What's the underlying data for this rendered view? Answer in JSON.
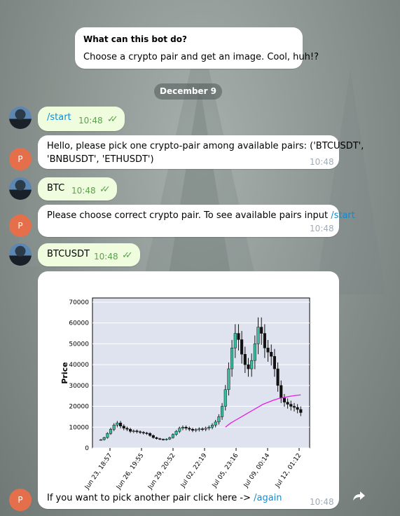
{
  "intro": {
    "title": "What can this bot do?",
    "text": "Choose a crypto pair and get an image. Cool, huh!?"
  },
  "date_separator": "December 9",
  "messages": [
    {
      "from": "user",
      "text": "/start",
      "time": "10:48"
    },
    {
      "from": "bot",
      "avatar_letter": "P",
      "line1": "Hello, please pick one crypto-pair among available pairs: ('BTCUSDT',",
      "line2": "'BNBUSDT', 'ETHUSDT')",
      "time": "10:48"
    },
    {
      "from": "user",
      "text": "BTC",
      "time": "10:48"
    },
    {
      "from": "bot",
      "avatar_letter": "P",
      "text_prefix": "Please choose correct crypto pair. To see available pairs input ",
      "link": "/start",
      "time": "10:48"
    },
    {
      "from": "user",
      "text": "BTCUSDT",
      "time": "10:48"
    },
    {
      "from": "bot",
      "avatar_letter": "P",
      "text_prefix": "If you want to pick another pair click here -> ",
      "link": "/again",
      "time": "10:48"
    }
  ],
  "icons": {
    "read_receipt": "double-check-icon",
    "share": "share-arrow-icon"
  },
  "colors": {
    "outgoing_bubble": "#effdde",
    "incoming_bubble": "#ffffff",
    "link": "#168acd",
    "avatar_bot": "#e56f4a",
    "chart_bg": "#dfe3ef",
    "ma_line": "#e21de0",
    "candle_up": "#35bfa0",
    "candle_down": "#111111"
  },
  "chart_data": {
    "type": "candlestick",
    "ylabel": "Price",
    "ylim": [
      0,
      72000
    ],
    "yticks": [
      0,
      10000,
      20000,
      30000,
      40000,
      50000,
      60000,
      70000
    ],
    "xtick_labels": [
      "Jun 23, 18:57",
      "Jun 26, 19:55",
      "Jun 29, 20:52",
      "Jul 02, 22:19",
      "Jul 05, 23:16",
      "Jul 09, 00:14",
      "Jul 12, 01:12"
    ],
    "close_series": [
      4000,
      5000,
      7000,
      9000,
      11000,
      12000,
      10500,
      9500,
      9000,
      8000,
      8200,
      7800,
      7500,
      7200,
      7000,
      6000,
      5000,
      4500,
      4200,
      4000,
      4300,
      5000,
      6500,
      8000,
      9500,
      10000,
      9500,
      9000,
      8500,
      8800,
      9200,
      9000,
      9500,
      10000,
      11000,
      12500,
      15000,
      20000,
      28000,
      38000,
      48000,
      55000,
      52000,
      45000,
      40000,
      38000,
      42000,
      50000,
      58000,
      55000,
      48000,
      46000,
      44000,
      38000,
      30000,
      24000,
      22000,
      21000,
      20000,
      19500,
      18500,
      17000
    ],
    "ma_series": {
      "start_index": 38,
      "values": [
        10000,
        12000,
        13500,
        15000,
        16500,
        18000,
        19500,
        21000,
        22000,
        23000,
        23800,
        24300,
        24800,
        25200,
        25500
      ]
    }
  }
}
